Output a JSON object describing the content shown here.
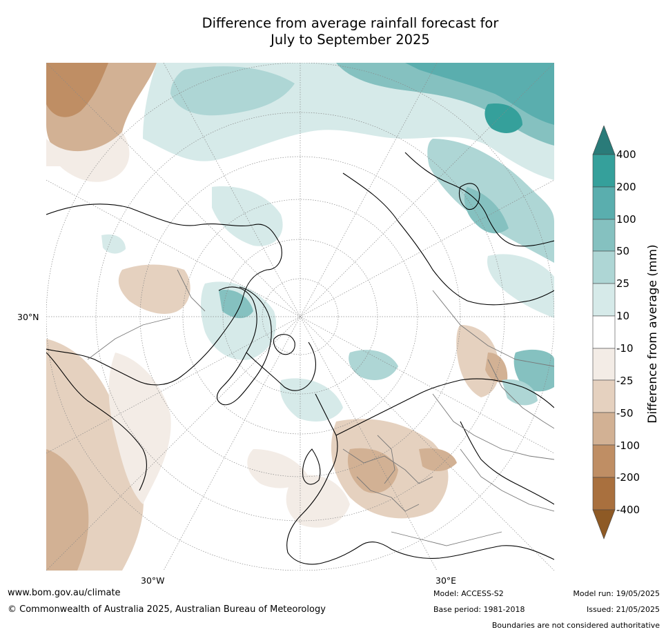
{
  "header": {
    "title_line1": "Difference from average rainfall forecast for",
    "title_line2": "July to September 2025"
  },
  "map": {
    "lat_label_30n": "30°N",
    "lon_label_30w": "30°W",
    "lon_label_30e": "30°E",
    "colors": {
      "wet_400": "#2a7b79",
      "wet_200": "#35a09b",
      "wet_100": "#5aaeae",
      "wet_50": "#85c1c0",
      "wet_25": "#aed6d5",
      "wet_10": "#d6eae9",
      "neutral": "#ffffff",
      "dry_10": "#f3ece6",
      "dry_25": "#e5d1bf",
      "dry_50": "#d2b194",
      "dry_100": "#bf8e64",
      "dry_200": "#a9703e",
      "dry_400": "#8e5a25",
      "coastline": "#000000",
      "borders": "#777777"
    }
  },
  "colorbar": {
    "title": "Difference from average (mm)",
    "ticks": [
      "400",
      "200",
      "100",
      "50",
      "25",
      "10",
      "-10",
      "-25",
      "-50",
      "-100",
      "-200",
      "-400"
    ]
  },
  "footer": {
    "website": "www.bom.gov.au/climate",
    "copyright": "© Commonwealth of Australia 2025, Australian Bureau of Meteorology",
    "model": "Model: ACCESS-S2",
    "base_period": "Base period: 1981-2018",
    "model_run": "Model run: 19/05/2025",
    "issued": "Issued: 21/05/2025",
    "disclaimer": "Boundaries are not considered authoritative"
  }
}
